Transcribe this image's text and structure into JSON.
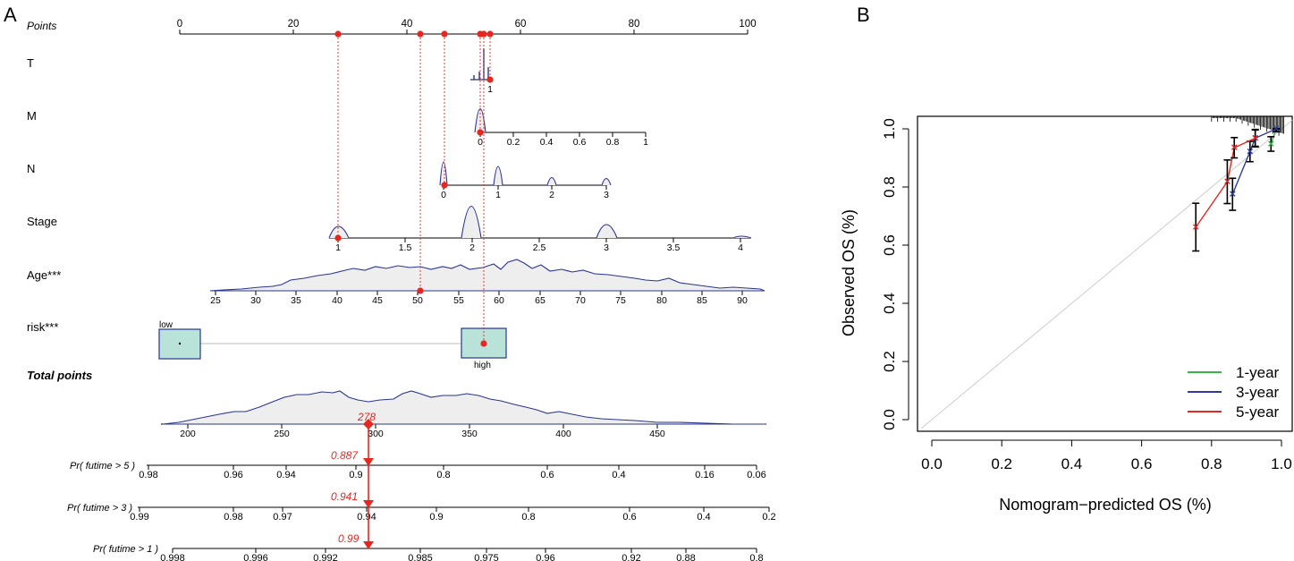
{
  "panel_a": {
    "letter": "A",
    "rows": {
      "points": "Points",
      "t": "T",
      "m": "M",
      "n": "N",
      "stage": "Stage",
      "age": "Age***",
      "risk": "risk***",
      "total": "Total points",
      "pr5": "Pr( futime > 5 )",
      "pr3": "Pr( futime > 3 )",
      "pr1": "Pr( futime > 1 )"
    },
    "risk_levels": {
      "low": "low",
      "high": "high"
    },
    "total_value": "278",
    "pr5_value": "0.887",
    "pr3_value": "0.941",
    "pr1_value": "0.99"
  },
  "panel_b": {
    "letter": "B"
  },
  "chart_data": [
    {
      "type": "nomogram",
      "title": "",
      "colors": {
        "axis": "#000000",
        "density": "#2a3590",
        "fill": "#eeeeee",
        "marker": "#e8251f",
        "box": "#b9e3d9"
      },
      "points_axis": {
        "min": 0,
        "max": 100,
        "ticks": [
          "0",
          "20",
          "40",
          "60",
          "80",
          "100"
        ]
      },
      "t_axis": {
        "ticks": [
          "1"
        ]
      },
      "m_axis": {
        "ticks": [
          "0",
          "0.2",
          "0.4",
          "0.6",
          "0.8",
          "1"
        ]
      },
      "n_axis": {
        "ticks": [
          "0",
          "1",
          "2",
          "3"
        ]
      },
      "stage_axis": {
        "ticks": [
          "1",
          "1.5",
          "2",
          "2.5",
          "3",
          "3.5",
          "4"
        ]
      },
      "age_axis": {
        "ticks": [
          "25",
          "30",
          "35",
          "40",
          "45",
          "50",
          "55",
          "60",
          "65",
          "70",
          "75",
          "80",
          "85",
          "90"
        ]
      },
      "total_axis": {
        "ticks": [
          "200",
          "250",
          "300",
          "350",
          "400",
          "450"
        ]
      },
      "pr5_axis": {
        "ticks": [
          "0.98",
          "0.96",
          "0.94",
          "0.9",
          "0.8",
          "0.6",
          "0.4",
          "0.16",
          "0.06"
        ]
      },
      "pr3_axis": {
        "ticks": [
          "0.99",
          "0.98",
          "0.97",
          "0.94",
          "0.9",
          "0.8",
          "0.6",
          "0.4",
          "0.2"
        ]
      },
      "pr1_axis": {
        "ticks": [
          "0.998",
          "0.996",
          "0.992",
          "0.985",
          "0.975",
          "0.96",
          "0.92",
          "0.88",
          "0.8"
        ]
      },
      "patient_points": {
        "T": 54,
        "M": 53,
        "N": 46,
        "Stage": 28,
        "Age": 42,
        "risk": 53
      },
      "patient_values": {
        "Age": 50,
        "Stage": 1,
        "N": 0,
        "M": 0,
        "T": 1,
        "risk": "high"
      },
      "total_points": 278,
      "predicted": {
        "5-year": 0.887,
        "3-year": 0.941,
        "1-year": 0.99
      }
    },
    {
      "type": "line",
      "title": "",
      "xlabel": "Nomogram−predicted OS (%)",
      "ylabel": "Observed OS (%)",
      "xlim": [
        0,
        1
      ],
      "ylim": [
        0,
        1
      ],
      "xticks": [
        "0.0",
        "0.2",
        "0.4",
        "0.6",
        "0.8",
        "1.0"
      ],
      "yticks": [
        "0.0",
        "0.2",
        "0.4",
        "0.6",
        "0.8",
        "1.0"
      ],
      "legend_position": "bottom-right",
      "series": [
        {
          "name": "1-year",
          "color": "#37b34a",
          "x": [
            0.97,
            0.985
          ],
          "y": [
            0.948,
            1.0
          ],
          "err": [
            0.025,
            0.01
          ]
        },
        {
          "name": "3-year",
          "color": "#2e3b9a",
          "x": [
            0.86,
            0.91,
            0.925,
            0.985
          ],
          "y": [
            0.775,
            0.922,
            0.968,
            1.0
          ],
          "err": [
            0.055,
            0.035,
            0.03,
            0.01
          ]
        },
        {
          "name": "5-year",
          "color": "#e8251f",
          "x": [
            0.755,
            0.845,
            0.865,
            0.925
          ],
          "y": [
            0.662,
            0.818,
            0.935,
            0.968
          ],
          "err": [
            0.082,
            0.075,
            0.035,
            0.028
          ]
        }
      ]
    }
  ]
}
